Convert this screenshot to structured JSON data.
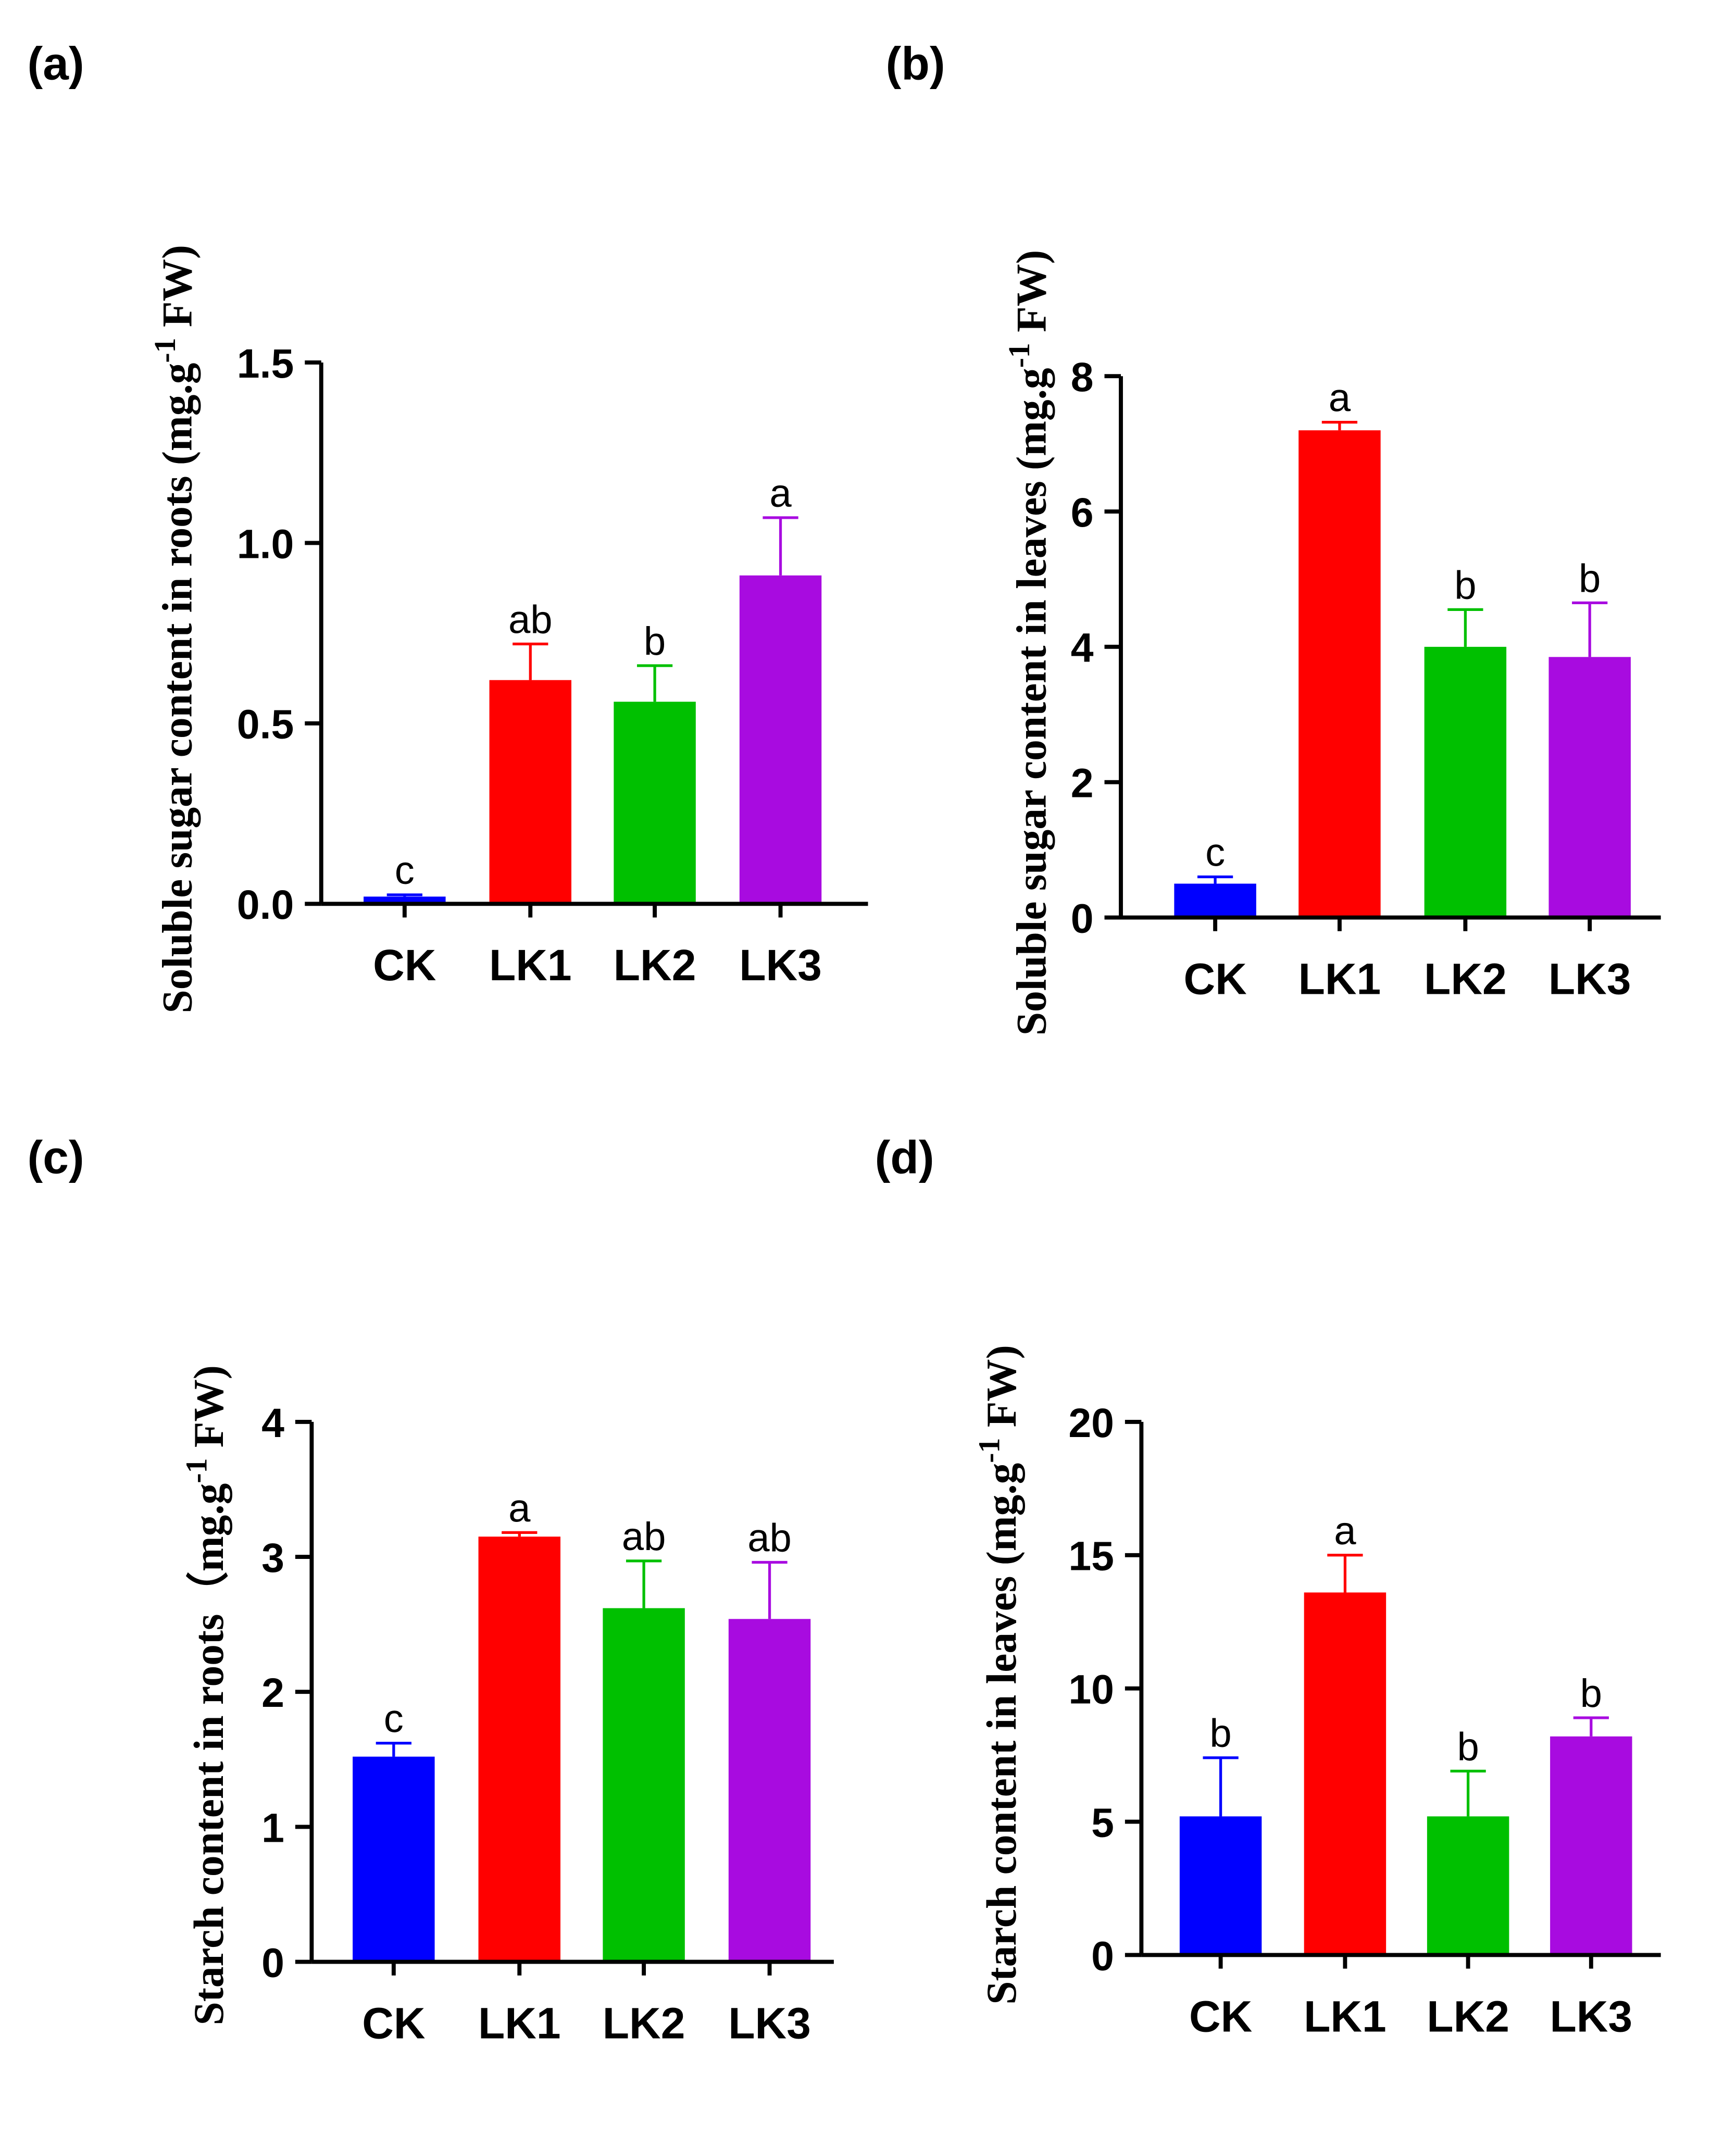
{
  "colors": {
    "CK": "#0000FF",
    "LK1": "#FF0000",
    "LK2": "#00C000",
    "LK3": "#A80BE0"
  },
  "chart_data": [
    {
      "type": "bar",
      "panel": "(a)",
      "categories": [
        "CK",
        "LK1",
        "LK2",
        "LK3"
      ],
      "values": [
        0.02,
        0.62,
        0.56,
        0.91
      ],
      "errors": [
        0.005,
        0.1,
        0.1,
        0.16
      ],
      "letters": [
        "c",
        "ab",
        "b",
        "a"
      ],
      "ylabel": [
        "Soluble sugar content in roots (mg.g",
        "-1",
        " FW)"
      ],
      "ylim": [
        0,
        1.5
      ],
      "yticks": [
        0,
        0.5,
        1.0,
        1.5
      ],
      "yticklabels": [
        "0.0",
        "0.5",
        "1.0",
        "1.5"
      ]
    },
    {
      "type": "bar",
      "panel": "(b)",
      "categories": [
        "CK",
        "LK1",
        "LK2",
        "LK3"
      ],
      "values": [
        0.5,
        7.2,
        4.0,
        3.85
      ],
      "errors": [
        0.1,
        0.12,
        0.55,
        0.8
      ],
      "letters": [
        "c",
        "a",
        "b",
        "b"
      ],
      "ylabel": [
        "Soluble sugar content in leaves (mg.g",
        "-1",
        " FW)"
      ],
      "ylim": [
        0,
        8
      ],
      "yticks": [
        0,
        2,
        4,
        6,
        8
      ],
      "yticklabels": [
        "0",
        "2",
        "4",
        "6",
        "8"
      ]
    },
    {
      "type": "bar",
      "panel": "(c)",
      "categories": [
        "CK",
        "LK1",
        "LK2",
        "LK3"
      ],
      "values": [
        1.52,
        3.15,
        2.62,
        2.54
      ],
      "errors": [
        0.1,
        0.03,
        0.35,
        0.42
      ],
      "letters": [
        "c",
        "a",
        "ab",
        "ab"
      ],
      "ylabel": [
        "Starch content in roots（mg.g",
        "-1",
        " FW)"
      ],
      "ylim": [
        0,
        4
      ],
      "yticks": [
        0,
        1,
        2,
        3,
        4
      ],
      "yticklabels": [
        "0",
        "1",
        "2",
        "3",
        "4"
      ]
    },
    {
      "type": "bar",
      "panel": "(d)",
      "categories": [
        "CK",
        "LK1",
        "LK2",
        "LK3"
      ],
      "values": [
        5.2,
        13.6,
        5.2,
        8.2
      ],
      "errors": [
        2.2,
        1.4,
        1.7,
        0.7
      ],
      "letters": [
        "b",
        "a",
        "b",
        "b"
      ],
      "ylabel": [
        "Starch content in leaves (mg.g",
        "-1",
        " FW)"
      ],
      "ylim": [
        0,
        20
      ],
      "yticks": [
        0,
        5,
        10,
        15,
        20
      ],
      "yticklabels": [
        "0",
        "5",
        "10",
        "15",
        "20"
      ]
    }
  ]
}
